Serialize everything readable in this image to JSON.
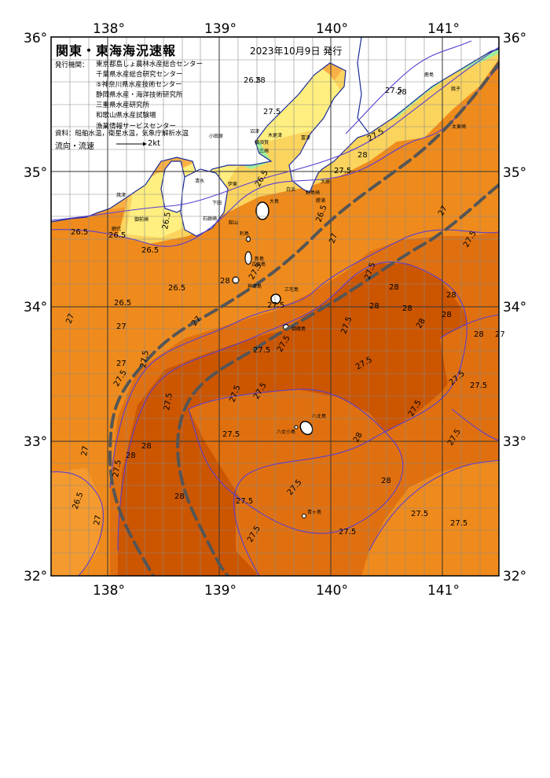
{
  "header": {
    "title": "関東・東海海況速報",
    "issued": "2023年10月9日 発行"
  },
  "institutions": {
    "key": "発行機関：",
    "list": [
      "東京都島しょ農林水産総合センター",
      "千葉県水産総合研究センター",
      "⑤神奈川県水産技術センター",
      "静岡県水産・海洋技術研究所",
      "三重県水産研究所",
      "和歌山県水産試験場",
      "漁業情報サービスセンター"
    ]
  },
  "source": "資料：船舶水温，衛星水温，気象庁解析水温",
  "current_legend": {
    "label": "流向・流速",
    "value": "2kt"
  },
  "axes": {
    "lon_ticks": [
      "138°",
      "139°",
      "140°",
      "141°"
    ],
    "lat_ticks": [
      "36°",
      "35°",
      "34°",
      "33°",
      "32°"
    ]
  },
  "temperature_labels": [
    "26.5",
    "27",
    "27.5",
    "28"
  ],
  "place_names": [
    "大島",
    "利島",
    "新島",
    "式根島",
    "神津島",
    "三宅島",
    "御蔵島",
    "八丈島",
    "八丈小島",
    "青ヶ島",
    "館山",
    "勝浦",
    "大原",
    "銚子",
    "鹿島",
    "太東崎",
    "白浜",
    "野島崎",
    "富津",
    "木更津",
    "横須賀",
    "三崎",
    "小田原",
    "伊東",
    "下田",
    "石廊崎",
    "御前崎",
    "焼津",
    "清水",
    "沼津",
    "網代"
  ],
  "colors": {
    "land": "#ffffff",
    "t_lt21": "#9ef09e",
    "t_21": "#d6f07a",
    "t_23": "#ffef80",
    "t_25": "#fbd45d",
    "t_26": "#f9b047",
    "t_265": "#f59a2e",
    "t_27": "#ef8b1c",
    "t_275": "#e0700f",
    "t_28": "#cc5500",
    "isotherm": "#5a3fd1",
    "kuroshio": "#555555",
    "coast": "#1a2b99"
  }
}
